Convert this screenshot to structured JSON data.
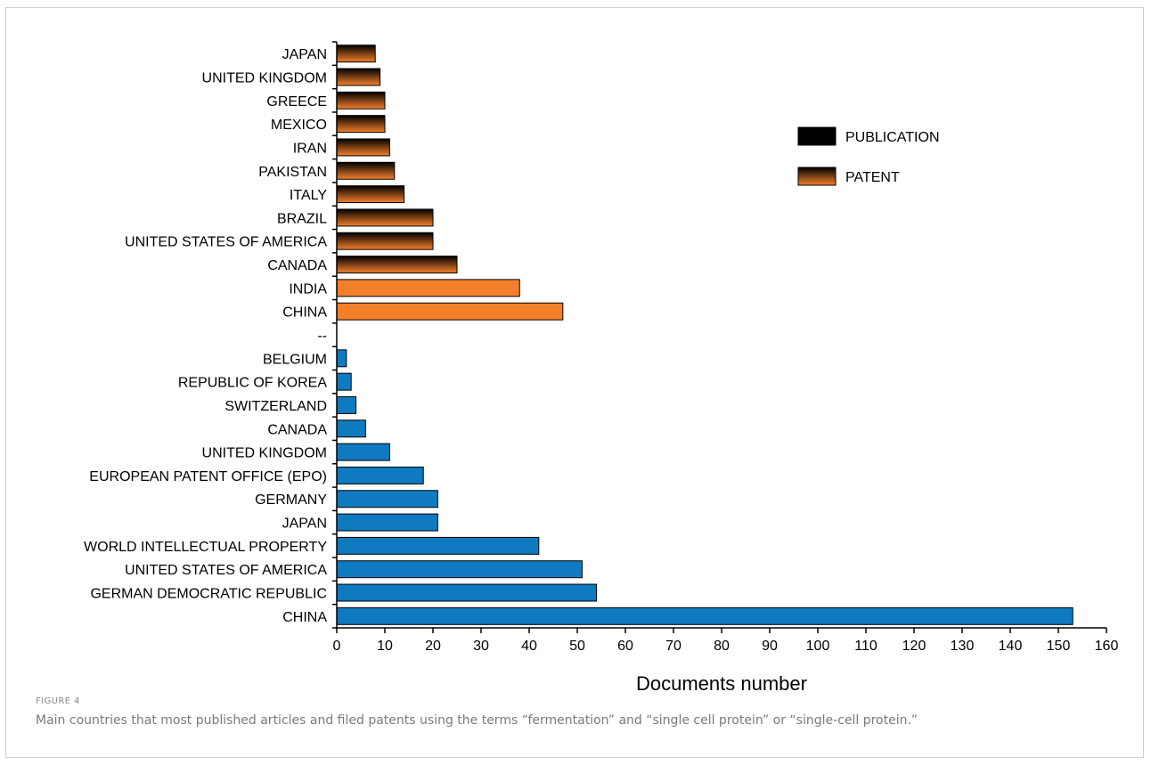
{
  "chart_data": {
    "type": "bar",
    "orientation": "horizontal",
    "xlabel": "Documents number",
    "xlim": [
      0,
      160
    ],
    "xticks": [
      0,
      10,
      20,
      30,
      40,
      50,
      60,
      70,
      80,
      90,
      100,
      110,
      120,
      130,
      140,
      150,
      160
    ],
    "legend": {
      "placement": "top-right",
      "entries": [
        {
          "name": "PUBLICATION",
          "color": "#000000"
        },
        {
          "name": "PATENT",
          "color": "#f47f2b"
        }
      ]
    },
    "rows": [
      {
        "label": "JAPAN",
        "value": 8,
        "series": "PUBLICATION"
      },
      {
        "label": "UNITED KINGDOM",
        "value": 9,
        "series": "PUBLICATION"
      },
      {
        "label": "GREECE",
        "value": 10,
        "series": "PUBLICATION"
      },
      {
        "label": "MEXICO",
        "value": 10,
        "series": "PUBLICATION"
      },
      {
        "label": "IRAN",
        "value": 11,
        "series": "PUBLICATION"
      },
      {
        "label": "PAKISTAN",
        "value": 12,
        "series": "PUBLICATION"
      },
      {
        "label": "ITALY",
        "value": 14,
        "series": "PUBLICATION"
      },
      {
        "label": "BRAZIL",
        "value": 20,
        "series": "PUBLICATION"
      },
      {
        "label": "UNITED STATES OF AMERICA",
        "value": 20,
        "series": "PUBLICATION"
      },
      {
        "label": "CANADA",
        "value": 25,
        "series": "PUBLICATION"
      },
      {
        "label": "INDIA",
        "value": 38,
        "series": "PATENT"
      },
      {
        "label": "CHINA",
        "value": 47,
        "series": "PATENT"
      },
      {
        "label": "--",
        "value": null,
        "series": null
      },
      {
        "label": "BELGIUM",
        "value": 2,
        "series": "OTHER"
      },
      {
        "label": "REPUBLIC OF KOREA",
        "value": 3,
        "series": "OTHER"
      },
      {
        "label": "SWITZERLAND",
        "value": 4,
        "series": "OTHER"
      },
      {
        "label": "CANADA",
        "value": 6,
        "series": "OTHER"
      },
      {
        "label": "UNITED KINGDOM",
        "value": 11,
        "series": "OTHER"
      },
      {
        "label": "EUROPEAN PATENT OFFICE (EPO)",
        "value": 18,
        "series": "OTHER"
      },
      {
        "label": "GERMANY",
        "value": 21,
        "series": "OTHER"
      },
      {
        "label": "JAPAN",
        "value": 21,
        "series": "OTHER"
      },
      {
        "label": "WORLD INTELLECTUAL PROPERTY",
        "value": 42,
        "series": "OTHER"
      },
      {
        "label": "UNITED STATES OF AMERICA",
        "value": 51,
        "series": "OTHER"
      },
      {
        "label": "GERMAN DEMOCRATIC REPUBLIC",
        "value": 54,
        "series": "OTHER"
      },
      {
        "label": "CHINA",
        "value": 153,
        "series": "OTHER"
      }
    ],
    "colors": {
      "publication_top": "#000000",
      "publication_bottom": "#f47f2b",
      "patent": "#f47f2b",
      "other": "#0f7ac0",
      "outline": "#000000",
      "axis": "#000000"
    }
  },
  "caption": {
    "figure_label": "FIGURE 4",
    "text": "Main countries that most published articles and filed patents using the terms “fermentation” and “single cell protein” or “single-cell protein.”"
  }
}
